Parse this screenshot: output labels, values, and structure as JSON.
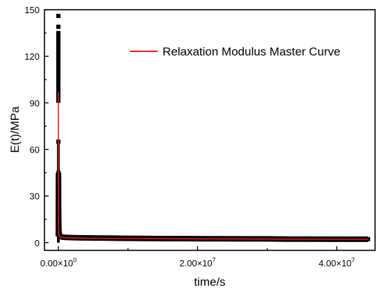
{
  "chart_data": {
    "type": "scatter",
    "title": "",
    "xlabel": "time/s",
    "ylabel": "E(t)/MPa",
    "xlim": [
      -2000000,
      45500000
    ],
    "ylim": [
      -5,
      150
    ],
    "x_ticks": [
      {
        "value": 0,
        "mantissa": "0.00×10",
        "exponent": "0"
      },
      {
        "value": 20000000,
        "mantissa": "2.00×10",
        "exponent": "7"
      },
      {
        "value": 40000000,
        "mantissa": "4.00×10",
        "exponent": "7"
      }
    ],
    "y_ticks": [
      {
        "value": 0,
        "label": "0"
      },
      {
        "value": 30,
        "label": "30"
      },
      {
        "value": 60,
        "label": "60"
      },
      {
        "value": 90,
        "label": "90"
      },
      {
        "value": 120,
        "label": "120"
      },
      {
        "value": 150,
        "label": "150"
      }
    ],
    "legend": {
      "placement": "top-right",
      "entries": [
        "Relaxation Modulus Master Curve"
      ]
    },
    "grid": false,
    "series": [
      {
        "name": "",
        "kind": "scatter",
        "color": "#000000",
        "x": [
          0,
          0,
          0,
          0,
          0,
          0,
          0,
          0,
          0,
          0,
          0,
          0,
          0,
          0,
          0,
          0,
          0,
          0,
          0,
          0,
          0,
          0,
          0,
          20000,
          40000,
          80000,
          150000,
          300000,
          500000,
          1000000,
          2000000,
          3000000,
          5000000,
          7000000,
          9000000,
          12000000,
          15000000,
          18000000,
          21000000,
          24000000,
          27000000,
          30000000,
          33000000,
          36000000,
          39000000,
          42000000,
          44500000
        ],
        "y": [
          146,
          139,
          135,
          133,
          131,
          129,
          127,
          125,
          123,
          121,
          119,
          117,
          115,
          113,
          111,
          109,
          107,
          105,
          103,
          100,
          96,
          92,
          65,
          45,
          20,
          8,
          5,
          4,
          3.6,
          3.4,
          3.2,
          3.1,
          3.0,
          2.9,
          2.8,
          2.7,
          2.6,
          2.6,
          2.5,
          2.5,
          2.4,
          2.4,
          2.3,
          2.3,
          2.2,
          2.2,
          2.2
        ]
      },
      {
        "name": "Relaxation Modulus Master Curve",
        "kind": "line",
        "color": "#e8191e",
        "x": [
          0,
          5000,
          10000,
          20000,
          40000,
          80000,
          150000,
          300000,
          600000,
          1000000,
          2000000,
          5000000,
          10000000,
          20000000,
          30000000,
          44500000
        ],
        "y": [
          97,
          60,
          35,
          15,
          8,
          5,
          4,
          3.5,
          3.3,
          3.1,
          3.0,
          2.8,
          2.6,
          2.4,
          2.3,
          2.2
        ]
      }
    ]
  }
}
